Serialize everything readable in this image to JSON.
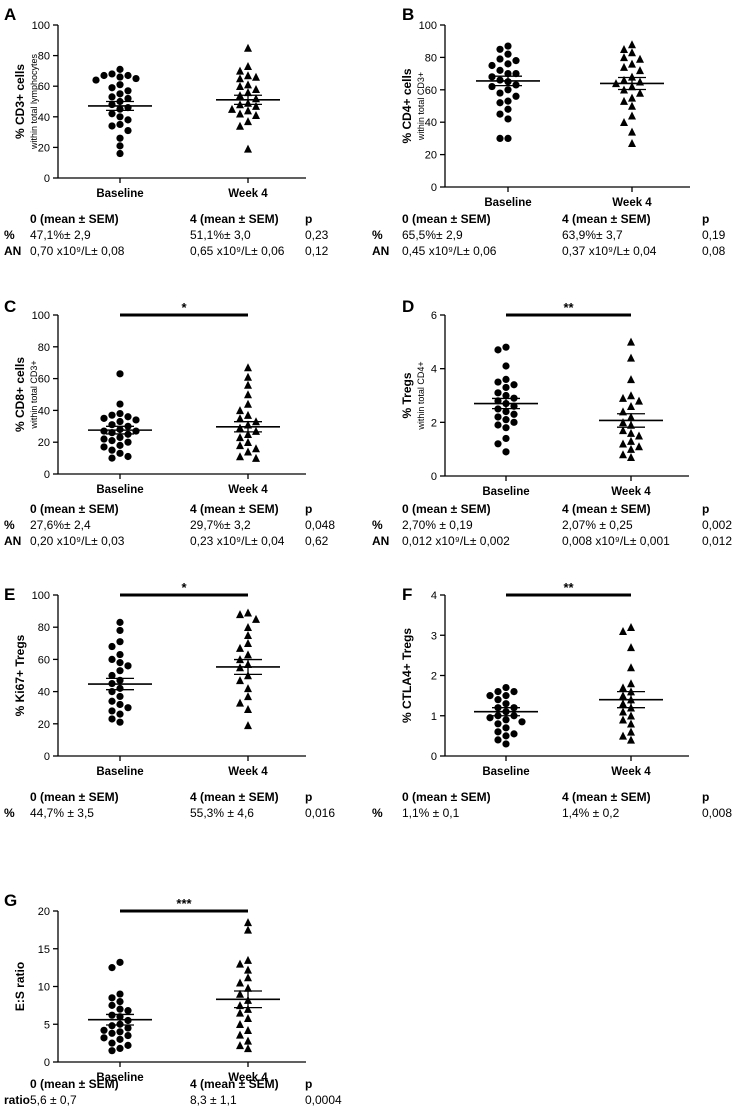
{
  "chart_data": [
    {
      "type": "scatter",
      "panel": "A",
      "ylabel_main": "% CD3+ cells",
      "ylabel_sub": "within total lymphocytes",
      "ylim": [
        0,
        100
      ],
      "yticks": [
        0,
        20,
        40,
        60,
        80,
        100
      ],
      "categories": [
        "Baseline",
        "Week 4"
      ],
      "series": [
        {
          "name": "Baseline",
          "marker": "circle",
          "mean": 47.1,
          "sem": 2.9,
          "values": [
            71,
            68,
            67,
            67,
            66,
            65,
            64,
            61,
            59,
            57,
            55,
            53,
            52,
            50,
            48,
            46,
            45,
            42,
            40,
            38,
            35,
            34,
            31,
            26,
            21,
            16
          ]
        },
        {
          "name": "Week 4",
          "marker": "triangle",
          "mean": 51.1,
          "sem": 3.0,
          "values": [
            85,
            73,
            70,
            67,
            66,
            65,
            61,
            60,
            58,
            56,
            54,
            52,
            49,
            48,
            47,
            45,
            44,
            42,
            41,
            37,
            34,
            19
          ]
        }
      ],
      "significance": ""
    },
    {
      "type": "scatter",
      "panel": "B",
      "ylabel_main": "% CD4+ cells",
      "ylabel_sub": "within total CD3+",
      "ylim": [
        0,
        100
      ],
      "yticks": [
        0,
        20,
        40,
        60,
        80,
        100
      ],
      "categories": [
        "Baseline",
        "Week 4"
      ],
      "series": [
        {
          "name": "Baseline",
          "marker": "circle",
          "mean": 65.5,
          "sem": 2.9,
          "values": [
            87,
            85,
            82,
            79,
            78,
            76,
            75,
            72,
            70,
            70,
            68,
            66,
            65,
            63,
            62,
            60,
            58,
            56,
            53,
            52,
            48,
            45,
            42,
            30,
            30
          ]
        },
        {
          "name": "Week 4",
          "marker": "triangle",
          "mean": 63.9,
          "sem": 3.7,
          "values": [
            88,
            85,
            83,
            80,
            79,
            76,
            74,
            72,
            68,
            66,
            65,
            64,
            62,
            60,
            58,
            55,
            53,
            50,
            44,
            40,
            34,
            27
          ]
        }
      ],
      "significance": ""
    },
    {
      "type": "scatter",
      "panel": "C",
      "ylabel_main": "% CD8+ cells",
      "ylabel_sub": "within total CD3+",
      "ylim": [
        0,
        100
      ],
      "yticks": [
        0,
        20,
        40,
        60,
        80,
        100
      ],
      "categories": [
        "Baseline",
        "Week 4"
      ],
      "series": [
        {
          "name": "Baseline",
          "marker": "circle",
          "mean": 27.6,
          "sem": 2.4,
          "values": [
            63,
            44,
            38,
            37,
            36,
            35,
            34,
            33,
            31,
            30,
            28,
            27,
            27,
            26,
            25,
            23,
            22,
            21,
            20,
            18,
            17,
            15,
            13,
            11,
            10
          ]
        },
        {
          "name": "Week 4",
          "marker": "triangle",
          "mean": 29.7,
          "sem": 3.2,
          "values": [
            67,
            61,
            56,
            50,
            44,
            40,
            37,
            35,
            33,
            31,
            29,
            27,
            25,
            23,
            20,
            18,
            16,
            14,
            11,
            10
          ]
        }
      ],
      "significance": "*"
    },
    {
      "type": "scatter",
      "panel": "D",
      "ylabel_main": "% Tregs",
      "ylabel_sub": "within total CD4+",
      "ylim": [
        0,
        6
      ],
      "yticks": [
        0,
        2,
        4,
        6
      ],
      "categories": [
        "Baseline",
        "Week 4"
      ],
      "series": [
        {
          "name": "Baseline",
          "marker": "circle",
          "mean": 2.7,
          "sem": 0.19,
          "values": [
            4.8,
            4.7,
            4.1,
            3.6,
            3.5,
            3.4,
            3.3,
            3.1,
            3.0,
            2.9,
            2.8,
            2.7,
            2.6,
            2.5,
            2.4,
            2.3,
            2.2,
            2.1,
            2.0,
            1.9,
            1.8,
            1.4,
            1.2,
            0.9
          ]
        },
        {
          "name": "Week 4",
          "marker": "triangle",
          "mean": 2.07,
          "sem": 0.25,
          "values": [
            5.0,
            4.4,
            3.6,
            3.0,
            2.9,
            2.8,
            2.6,
            2.4,
            2.2,
            2.0,
            1.9,
            1.7,
            1.6,
            1.5,
            1.3,
            1.2,
            1.1,
            1.0,
            0.8,
            0.7
          ]
        }
      ],
      "significance": "**"
    },
    {
      "type": "scatter",
      "panel": "E",
      "ylabel_main": "% Ki67+ Tregs",
      "ylabel_sub": "",
      "ylim": [
        0,
        100
      ],
      "yticks": [
        0,
        20,
        40,
        60,
        80,
        100
      ],
      "categories": [
        "Baseline",
        "Week 4"
      ],
      "series": [
        {
          "name": "Baseline",
          "marker": "circle",
          "mean": 44.7,
          "sem": 3.5,
          "values": [
            83,
            78,
            71,
            68,
            63,
            60,
            58,
            56,
            53,
            50,
            47,
            45,
            42,
            40,
            37,
            34,
            32,
            30,
            28,
            26,
            23,
            21
          ]
        },
        {
          "name": "Week 4",
          "marker": "triangle",
          "mean": 55.3,
          "sem": 4.6,
          "values": [
            89,
            88,
            85,
            80,
            75,
            70,
            67,
            63,
            60,
            57,
            55,
            50,
            47,
            42,
            37,
            33,
            29,
            19
          ]
        }
      ],
      "significance": "*"
    },
    {
      "type": "scatter",
      "panel": "F",
      "ylabel_main": "% CTLA4+ Tregs",
      "ylabel_sub": "",
      "ylim": [
        0,
        4
      ],
      "yticks": [
        0,
        1,
        2,
        3,
        4
      ],
      "categories": [
        "Baseline",
        "Week 4"
      ],
      "series": [
        {
          "name": "Baseline",
          "marker": "circle",
          "mean": 1.1,
          "sem": 0.1,
          "values": [
            1.7,
            1.6,
            1.6,
            1.5,
            1.5,
            1.4,
            1.3,
            1.2,
            1.2,
            1.1,
            1.0,
            1.0,
            0.95,
            0.9,
            0.85,
            0.8,
            0.7,
            0.6,
            0.55,
            0.5,
            0.4,
            0.3
          ]
        },
        {
          "name": "Week 4",
          "marker": "triangle",
          "mean": 1.4,
          "sem": 0.2,
          "values": [
            3.2,
            3.1,
            2.7,
            2.2,
            1.8,
            1.7,
            1.6,
            1.5,
            1.4,
            1.3,
            1.2,
            1.1,
            1.0,
            0.9,
            0.8,
            0.6,
            0.5,
            0.4
          ]
        }
      ],
      "significance": "**"
    },
    {
      "type": "scatter",
      "panel": "G",
      "ylabel_main": "E:S ratio",
      "ylabel_sub": "",
      "ylim": [
        0,
        20
      ],
      "yticks": [
        0,
        5,
        10,
        15,
        20
      ],
      "categories": [
        "Baseline",
        "Week 4"
      ],
      "series": [
        {
          "name": "Baseline",
          "marker": "circle",
          "mean": 5.6,
          "sem": 0.7,
          "values": [
            13.2,
            12.5,
            9.0,
            8.5,
            8.0,
            7.5,
            7.0,
            6.8,
            6.2,
            6.0,
            5.5,
            5.0,
            4.8,
            4.5,
            4.2,
            4.0,
            3.8,
            3.5,
            3.2,
            3.0,
            2.5,
            2.2,
            1.8,
            1.5
          ]
        },
        {
          "name": "Week 4",
          "marker": "triangle",
          "mean": 8.3,
          "sem": 1.1,
          "values": [
            18.5,
            17.5,
            13.5,
            13.0,
            12.2,
            11.2,
            10.5,
            9.8,
            9.0,
            8.2,
            7.5,
            7.0,
            6.5,
            5.8,
            5.0,
            4.2,
            3.6,
            2.8,
            2.2,
            1.8
          ]
        }
      ],
      "significance": "***"
    }
  ],
  "tables": [
    {
      "header": [
        "0 (mean ± SEM)",
        "4 (mean ± SEM)",
        "p"
      ],
      "rows": [
        {
          "label": "%",
          "baseline": "47,1%± 2,9",
          "week4": "51,1%± 3,0",
          "p": "0,23"
        },
        {
          "label": "AN",
          "baseline": "0,70 x10⁹/L± 0,08",
          "week4": "0,65 x10⁹/L± 0,06",
          "p": "0,12"
        }
      ]
    },
    {
      "header": [
        "0 (mean ± SEM)",
        "4 (mean ± SEM)",
        "p"
      ],
      "rows": [
        {
          "label": "%",
          "baseline": "65,5%± 2,9",
          "week4": "63,9%± 3,7",
          "p": "0,19"
        },
        {
          "label": "AN",
          "baseline": "0,45 x10⁹/L± 0,06",
          "week4": "0,37 x10⁹/L± 0,04",
          "p": "0,08"
        }
      ]
    },
    {
      "header": [
        "0 (mean ± SEM)",
        "4 (mean ± SEM)",
        "p"
      ],
      "rows": [
        {
          "label": "%",
          "baseline": "27,6%± 2,4",
          "week4": "29,7%± 3,2",
          "p": "0,048"
        },
        {
          "label": "AN",
          "baseline": "0,20 x10⁹/L± 0,03",
          "week4": "0,23 x10⁹/L± 0,04",
          "p": "0,62"
        }
      ]
    },
    {
      "header": [
        "0 (mean ± SEM)",
        "4 (mean ± SEM)",
        "p"
      ],
      "rows": [
        {
          "label": "%",
          "baseline": "2,70% ± 0,19",
          "week4": "2,07% ± 0,25",
          "p": "0,002"
        },
        {
          "label": "AN",
          "baseline": "0,012 x10⁹/L± 0,002",
          "week4": "0,008 x10⁹/L± 0,001",
          "p": "0,012"
        }
      ]
    },
    {
      "header": [
        "0 (mean ± SEM)",
        "4 (mean ± SEM)",
        "p"
      ],
      "rows": [
        {
          "label": "%",
          "baseline": "44,7% ± 3,5",
          "week4": "55,3% ± 4,6",
          "p": "0,016"
        }
      ]
    },
    {
      "header": [
        "0 (mean ± SEM)",
        "4 (mean ± SEM)",
        "p"
      ],
      "rows": [
        {
          "label": "%",
          "baseline": "1,1% ± 0,1",
          "week4": "1,4% ± 0,2",
          "p": "0,008"
        }
      ]
    },
    {
      "header": [
        "0 (mean ± SEM)",
        "4 (mean ± SEM)",
        "p"
      ],
      "rows": [
        {
          "label": "ratio",
          "baseline": "5,6 ± 0,7",
          "week4": "8,3 ± 1,1",
          "p": "0,0004"
        }
      ]
    }
  ],
  "colors": {
    "ink": "#000000",
    "background": "#ffffff"
  }
}
